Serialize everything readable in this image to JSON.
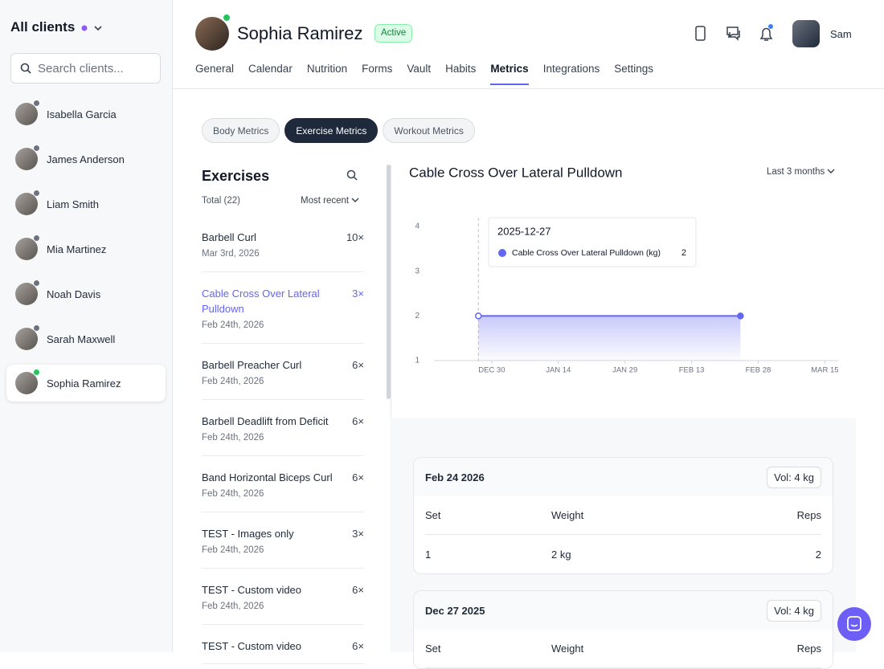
{
  "sidebar": {
    "title": "All clients",
    "search_placeholder": "Search clients...",
    "clients": [
      "Isabella Garcia",
      "James Anderson",
      "Liam Smith",
      "Mia Martinez",
      "Noah Davis",
      "Sarah Maxwell",
      "Sophia Ramirez"
    ]
  },
  "header": {
    "name": "Sophia Ramirez",
    "status": "Active",
    "user": "Sam",
    "tabs": [
      "General",
      "Calendar",
      "Nutrition",
      "Forms",
      "Vault",
      "Habits",
      "Metrics",
      "Integrations",
      "Settings"
    ]
  },
  "metric_tabs": [
    "Body Metrics",
    "Exercise Metrics",
    "Workout Metrics"
  ],
  "exercises": {
    "title": "Exercises",
    "total": "Total (22)",
    "sort": "Most recent",
    "items": [
      {
        "name": "Barbell Curl",
        "count": "10×",
        "date": "Mar 3rd, 2026"
      },
      {
        "name": "Cable Cross Over Lateral Pulldown",
        "count": "3×",
        "date": "Feb 24th, 2026"
      },
      {
        "name": "Barbell Preacher Curl",
        "count": "6×",
        "date": "Feb 24th, 2026"
      },
      {
        "name": "Barbell Deadlift from Deficit",
        "count": "6×",
        "date": "Feb 24th, 2026"
      },
      {
        "name": "Band Horizontal Biceps Curl",
        "count": "6×",
        "date": "Feb 24th, 2026"
      },
      {
        "name": "TEST - Images only",
        "count": "3×",
        "date": "Feb 24th, 2026"
      },
      {
        "name": "TEST - Custom video",
        "count": "6×",
        "date": "Feb 24th, 2026"
      },
      {
        "name": "TEST - Custom video",
        "count": "6×",
        "date": ""
      }
    ]
  },
  "range_selector": "Last 3 months",
  "chart_data": {
    "type": "area",
    "title": "Cable Cross Over Lateral Pulldown",
    "x": [
      "2025-12-27",
      "2026-02-24"
    ],
    "series": [
      {
        "name": "Cable Cross Over Lateral Pulldown (kg)",
        "color": "#6366f1",
        "values": [
          2,
          2
        ]
      }
    ],
    "xlim": [
      "2025-12-17",
      "2026-03-18"
    ],
    "xticks": [
      {
        "value": "2025-12-30",
        "label": "DEC 30"
      },
      {
        "value": "2026-01-14",
        "label": "JAN 14"
      },
      {
        "value": "2026-01-29",
        "label": "JAN 29"
      },
      {
        "value": "2026-02-13",
        "label": "FEB 13"
      },
      {
        "value": "2026-02-28",
        "label": "FEB 28"
      },
      {
        "value": "2026-03-15",
        "label": "MAR 15"
      }
    ],
    "ylim": [
      1,
      4
    ],
    "yticks": [
      1,
      2,
      3,
      4
    ],
    "grid": false
  },
  "sessions": [
    {
      "date": "Feb 24 2026",
      "volume": "Vol: 4 kg",
      "columns": [
        "Set",
        "Weight",
        "Reps"
      ],
      "rows": [
        [
          1,
          "2 kg",
          2
        ]
      ]
    },
    {
      "date": "Dec 27 2025",
      "volume": "Vol: 4 kg",
      "columns": [
        "Set",
        "Weight",
        "Reps"
      ],
      "rows": []
    }
  ]
}
